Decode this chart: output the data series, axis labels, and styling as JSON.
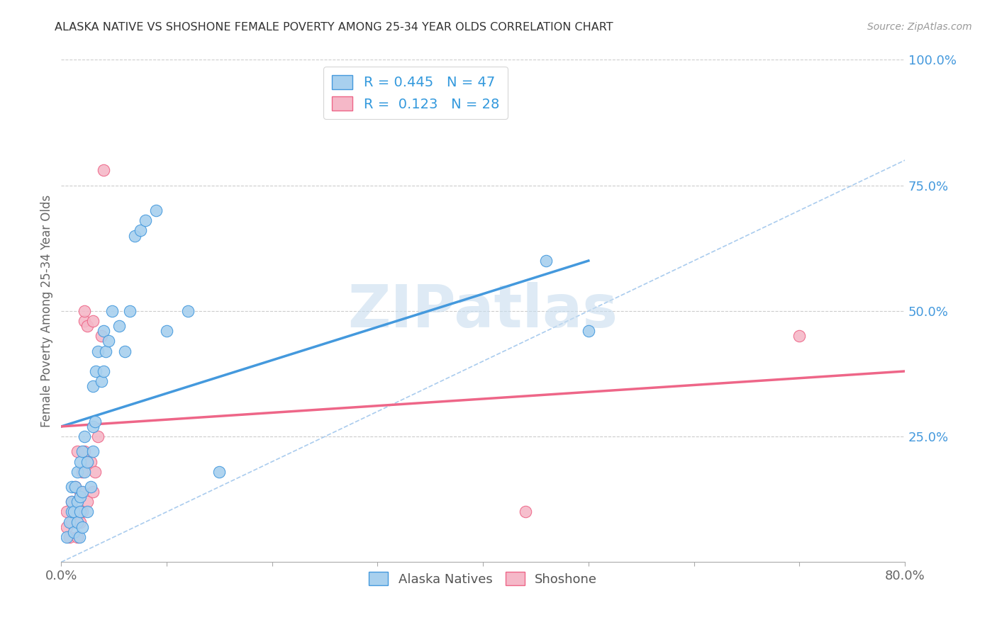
{
  "title": "ALASKA NATIVE VS SHOSHONE FEMALE POVERTY AMONG 25-34 YEAR OLDS CORRELATION CHART",
  "source": "Source: ZipAtlas.com",
  "ylabel": "Female Poverty Among 25-34 Year Olds",
  "xlim": [
    0.0,
    0.8
  ],
  "ylim": [
    0.0,
    1.0
  ],
  "xticks": [
    0.0,
    0.1,
    0.2,
    0.3,
    0.4,
    0.5,
    0.6,
    0.7,
    0.8
  ],
  "xtick_labels": [
    "0.0%",
    "",
    "",
    "",
    "",
    "",
    "",
    "",
    "80.0%"
  ],
  "yticks_right": [
    0.25,
    0.5,
    0.75,
    1.0
  ],
  "ytick_labels_right": [
    "25.0%",
    "50.0%",
    "75.0%",
    "100.0%"
  ],
  "alaska_R": 0.445,
  "alaska_N": 47,
  "shoshone_R": 0.123,
  "shoshone_N": 28,
  "alaska_color": "#A8D0EE",
  "shoshone_color": "#F5B8C8",
  "alaska_line_color": "#4499DD",
  "shoshone_line_color": "#EE6688",
  "refline_color": "#AACCEE",
  "watermark": "ZIPatlas",
  "alaska_line_x0": 0.0,
  "alaska_line_y0": 0.27,
  "alaska_line_x1": 0.5,
  "alaska_line_y1": 0.6,
  "shoshone_line_x0": 0.0,
  "shoshone_line_y0": 0.27,
  "shoshone_line_x1": 0.8,
  "shoshone_line_y1": 0.38,
  "alaska_x": [
    0.005,
    0.008,
    0.01,
    0.01,
    0.01,
    0.012,
    0.012,
    0.013,
    0.015,
    0.015,
    0.015,
    0.017,
    0.018,
    0.018,
    0.018,
    0.02,
    0.02,
    0.02,
    0.022,
    0.022,
    0.025,
    0.025,
    0.028,
    0.03,
    0.03,
    0.03,
    0.032,
    0.033,
    0.035,
    0.038,
    0.04,
    0.04,
    0.042,
    0.045,
    0.048,
    0.055,
    0.06,
    0.065,
    0.07,
    0.075,
    0.08,
    0.09,
    0.1,
    0.12,
    0.15,
    0.46,
    0.5
  ],
  "alaska_y": [
    0.05,
    0.08,
    0.1,
    0.12,
    0.15,
    0.06,
    0.1,
    0.15,
    0.08,
    0.12,
    0.18,
    0.05,
    0.1,
    0.13,
    0.2,
    0.07,
    0.14,
    0.22,
    0.18,
    0.25,
    0.1,
    0.2,
    0.15,
    0.22,
    0.27,
    0.35,
    0.28,
    0.38,
    0.42,
    0.36,
    0.38,
    0.46,
    0.42,
    0.44,
    0.5,
    0.47,
    0.42,
    0.5,
    0.65,
    0.66,
    0.68,
    0.7,
    0.46,
    0.5,
    0.18,
    0.6,
    0.46
  ],
  "shoshone_x": [
    0.005,
    0.005,
    0.008,
    0.01,
    0.01,
    0.012,
    0.013,
    0.015,
    0.015,
    0.015,
    0.018,
    0.018,
    0.02,
    0.02,
    0.022,
    0.022,
    0.022,
    0.025,
    0.025,
    0.028,
    0.03,
    0.03,
    0.032,
    0.035,
    0.038,
    0.04,
    0.44,
    0.7
  ],
  "shoshone_y": [
    0.07,
    0.1,
    0.05,
    0.08,
    0.12,
    0.1,
    0.15,
    0.05,
    0.1,
    0.22,
    0.08,
    0.14,
    0.1,
    0.18,
    0.22,
    0.48,
    0.5,
    0.12,
    0.47,
    0.2,
    0.14,
    0.48,
    0.18,
    0.25,
    0.45,
    0.78,
    0.1,
    0.45
  ]
}
